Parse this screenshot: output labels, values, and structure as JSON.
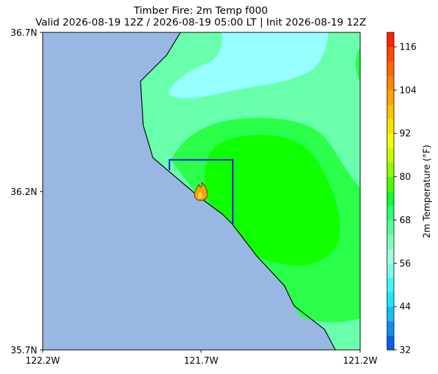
{
  "title_line1": "Timber Fire: 2m Temp f000",
  "title_line2": "Valid 2026-08-19 12Z / 2026-08-19 05:00 LT | Init 2026-08-19 12Z",
  "map": {
    "lat_ticks": [
      "36.7N",
      "36.2N",
      "35.7N"
    ],
    "lon_ticks": [
      "122.2W",
      "121.7W",
      "121.2W"
    ],
    "extent": {
      "lon_min": -122.2,
      "lon_max": -121.2,
      "lat_min": 35.7,
      "lat_max": 36.7
    },
    "ocean_color": "#98b7e2",
    "fire_icon": "flame-icon",
    "fire_location": {
      "lon": -121.7,
      "lat": 36.2
    }
  },
  "colorbar": {
    "label": "2m Temperature (°F)",
    "ticks": [
      "32",
      "44",
      "56",
      "68",
      "80",
      "92",
      "104",
      "116"
    ],
    "min": 32,
    "max": 120,
    "colors": [
      "#0a5fe8",
      "#0f8ef0",
      "#14c0f5",
      "#1ae6f8",
      "#3ef8f4",
      "#7cfde8",
      "#a0ffe0",
      "#7effc0",
      "#57ff9c",
      "#2bff72",
      "#11ff2a",
      "#4cff00",
      "#8cff00",
      "#c6ff00",
      "#f2ff00",
      "#ffe200",
      "#ffc400",
      "#ffa500",
      "#ff8700",
      "#ff6900",
      "#ff4a00",
      "#ff2200"
    ]
  }
}
